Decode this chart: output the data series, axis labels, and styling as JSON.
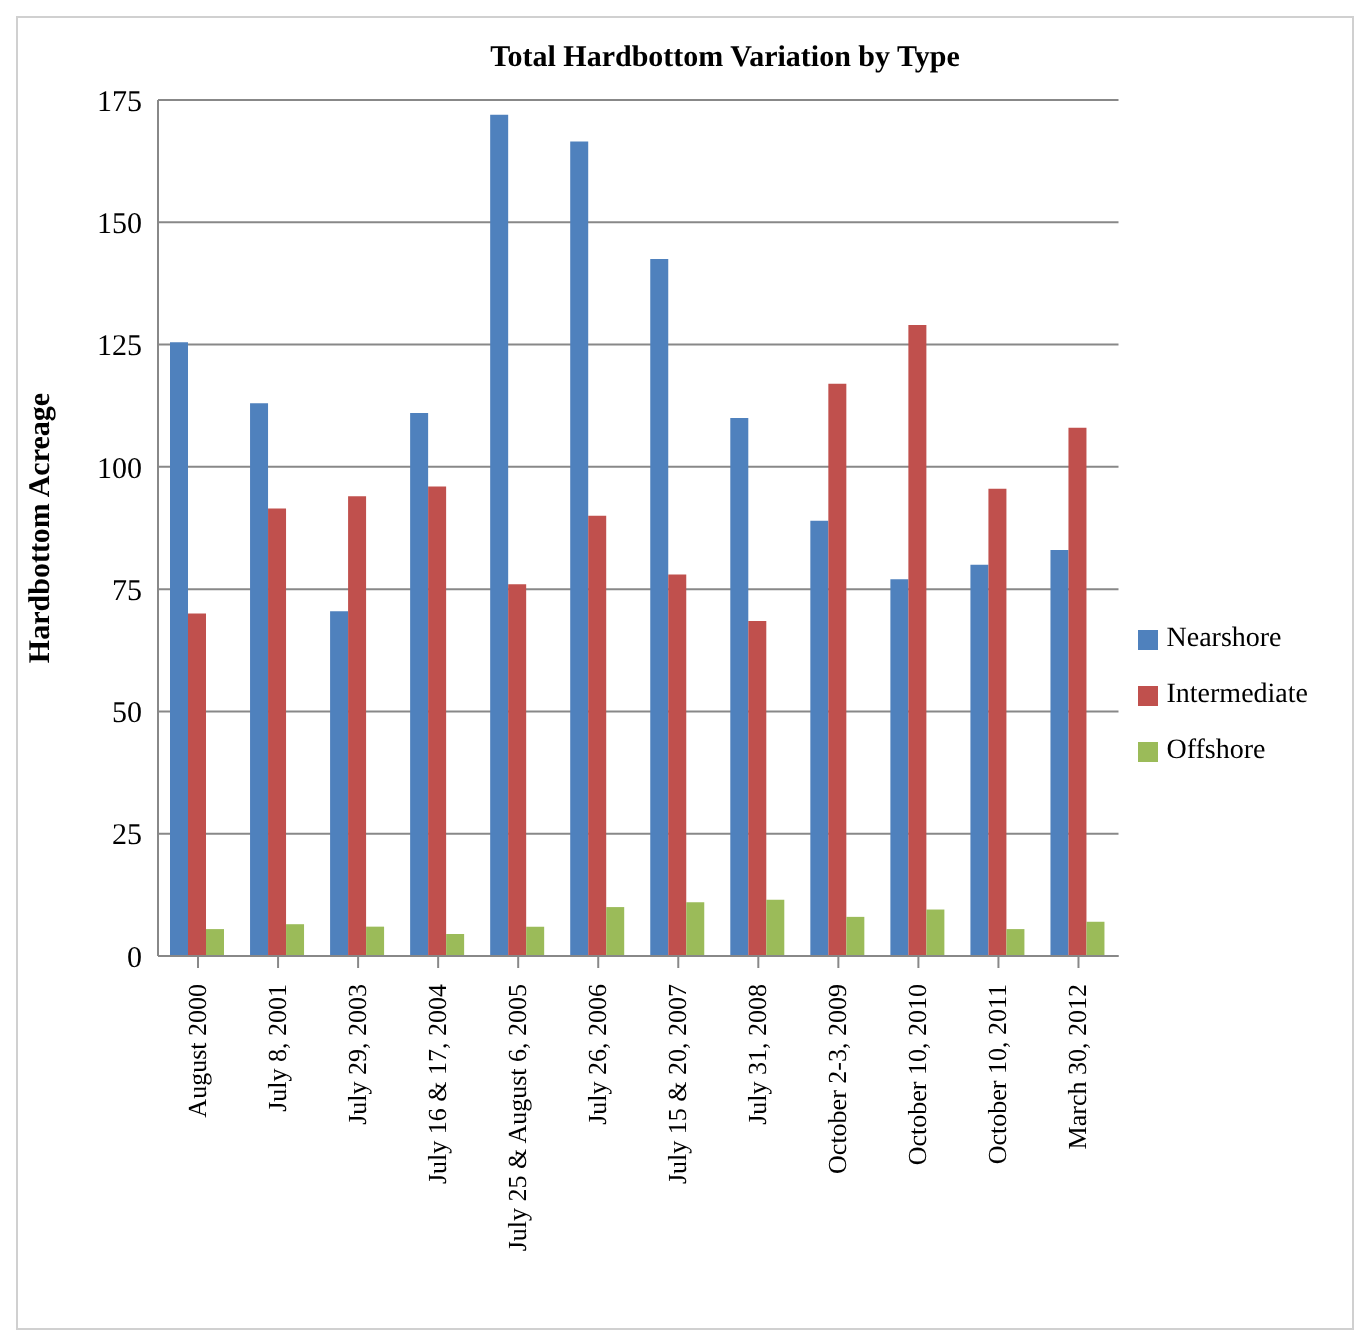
{
  "chart_data": {
    "type": "bar",
    "title": "Total Hardbottom Variation by Type",
    "ylabel": "Hardbottom Acreage",
    "categories": [
      "August 2000",
      "July 8, 2001",
      "July 29, 2003",
      "July 16 & 17, 2004",
      "July 25 & August 6, 2005",
      "July 26, 2006",
      "July 15 & 20, 2007",
      "July 31, 2008",
      "October 2-3, 2009",
      "October 10, 2010",
      "October 10, 2011",
      "March 30, 2012"
    ],
    "series": [
      {
        "name": "Nearshore",
        "color": "#4f81bd",
        "values": [
          125.5,
          113,
          70.5,
          111,
          172,
          166.5,
          142.5,
          110,
          89,
          77,
          80,
          83
        ]
      },
      {
        "name": "Intermediate",
        "color": "#c0504d",
        "values": [
          70,
          91.5,
          94,
          96,
          76,
          90,
          78,
          68.5,
          117,
          129,
          95.5,
          108
        ]
      },
      {
        "name": "Offshore",
        "color": "#9bbb59",
        "values": [
          5.5,
          6.5,
          6,
          4.5,
          6,
          10,
          11,
          11.5,
          8,
          9.5,
          5.5,
          7
        ]
      }
    ],
    "ylim": [
      0,
      175
    ],
    "yticks": [
      0,
      25,
      50,
      75,
      100,
      125,
      150,
      175
    ],
    "grid": "y",
    "legend": "right"
  }
}
